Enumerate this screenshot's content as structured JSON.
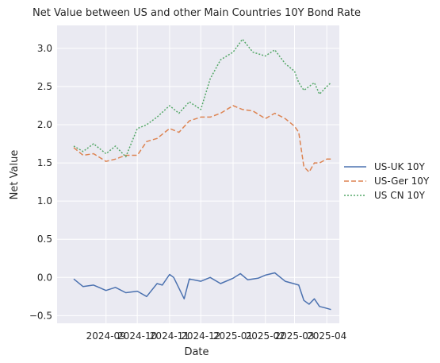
{
  "chart_data": {
    "type": "line",
    "title": "Net Value between US and other Main Countries 10Y Bond Rate",
    "xlabel": "Date",
    "ylabel": "Net Value",
    "x_tick_labels": [
      "2024-09",
      "2024-10",
      "2024-11",
      "2024-12",
      "2025-01",
      "2025-02",
      "2025-03",
      "2025-04"
    ],
    "y_tick_labels": [
      "−0.5",
      "0.0",
      "0.5",
      "1.0",
      "1.5",
      "2.0",
      "2.5",
      "3.0"
    ],
    "ylim": [
      -0.6,
      3.3
    ],
    "xlim": [
      "2024-07-16",
      "2025-04-13"
    ],
    "grid": true,
    "legend_placement": "right",
    "background_color": "#eaeaf2",
    "series": [
      {
        "name": "US-UK 10Y",
        "color": "#4c72b0",
        "style": "solid",
        "x": [
          "2024-08-01",
          "2024-08-10",
          "2024-08-20",
          "2024-09-01",
          "2024-09-10",
          "2024-09-20",
          "2024-10-01",
          "2024-10-10",
          "2024-10-20",
          "2024-10-25",
          "2024-11-01",
          "2024-11-05",
          "2024-11-15",
          "2024-11-20",
          "2024-12-01",
          "2024-12-10",
          "2024-12-20",
          "2025-01-01",
          "2025-01-08",
          "2025-01-15",
          "2025-01-25",
          "2025-02-01",
          "2025-02-10",
          "2025-02-20",
          "2025-02-28",
          "2025-03-05",
          "2025-03-10",
          "2025-03-15",
          "2025-03-20",
          "2025-03-25",
          "2025-03-31",
          "2025-04-05"
        ],
        "values": [
          -0.02,
          -0.12,
          -0.1,
          -0.17,
          -0.13,
          -0.2,
          -0.18,
          -0.25,
          -0.08,
          -0.1,
          0.04,
          0.0,
          -0.28,
          -0.02,
          -0.05,
          0.0,
          -0.08,
          -0.01,
          0.05,
          -0.03,
          -0.01,
          0.03,
          0.06,
          -0.05,
          -0.08,
          -0.1,
          -0.3,
          -0.35,
          -0.28,
          -0.38,
          -0.4,
          -0.42
        ]
      },
      {
        "name": "US-Ger 10Y",
        "color": "#dd8452",
        "style": "dashed",
        "x": [
          "2024-08-01",
          "2024-08-10",
          "2024-08-20",
          "2024-09-01",
          "2024-09-10",
          "2024-09-20",
          "2024-10-01",
          "2024-10-10",
          "2024-10-20",
          "2024-11-01",
          "2024-11-10",
          "2024-11-20",
          "2024-12-01",
          "2024-12-10",
          "2024-12-20",
          "2025-01-01",
          "2025-01-10",
          "2025-01-20",
          "2025-02-01",
          "2025-02-10",
          "2025-02-20",
          "2025-03-01",
          "2025-03-05",
          "2025-03-10",
          "2025-03-15",
          "2025-03-20",
          "2025-03-25",
          "2025-04-01",
          "2025-04-05"
        ],
        "values": [
          1.7,
          1.6,
          1.62,
          1.52,
          1.55,
          1.6,
          1.6,
          1.78,
          1.82,
          1.95,
          1.9,
          2.05,
          2.1,
          2.1,
          2.15,
          2.25,
          2.2,
          2.18,
          2.08,
          2.15,
          2.08,
          1.98,
          1.9,
          1.45,
          1.38,
          1.5,
          1.5,
          1.55,
          1.55
        ]
      },
      {
        "name": "US CN 10Y",
        "color": "#55a868",
        "style": "dotted",
        "x": [
          "2024-08-01",
          "2024-08-10",
          "2024-08-20",
          "2024-09-01",
          "2024-09-10",
          "2024-09-20",
          "2024-10-01",
          "2024-10-10",
          "2024-10-20",
          "2024-11-01",
          "2024-11-10",
          "2024-11-20",
          "2024-12-01",
          "2024-12-10",
          "2024-12-20",
          "2025-01-01",
          "2025-01-10",
          "2025-01-20",
          "2025-02-01",
          "2025-02-10",
          "2025-02-20",
          "2025-03-01",
          "2025-03-05",
          "2025-03-10",
          "2025-03-15",
          "2025-03-20",
          "2025-03-25",
          "2025-04-01",
          "2025-04-05"
        ],
        "values": [
          1.72,
          1.65,
          1.75,
          1.62,
          1.72,
          1.58,
          1.95,
          2.0,
          2.1,
          2.25,
          2.15,
          2.3,
          2.2,
          2.6,
          2.85,
          2.95,
          3.12,
          2.95,
          2.9,
          2.98,
          2.8,
          2.7,
          2.55,
          2.45,
          2.5,
          2.55,
          2.4,
          2.5,
          2.55
        ]
      }
    ]
  }
}
